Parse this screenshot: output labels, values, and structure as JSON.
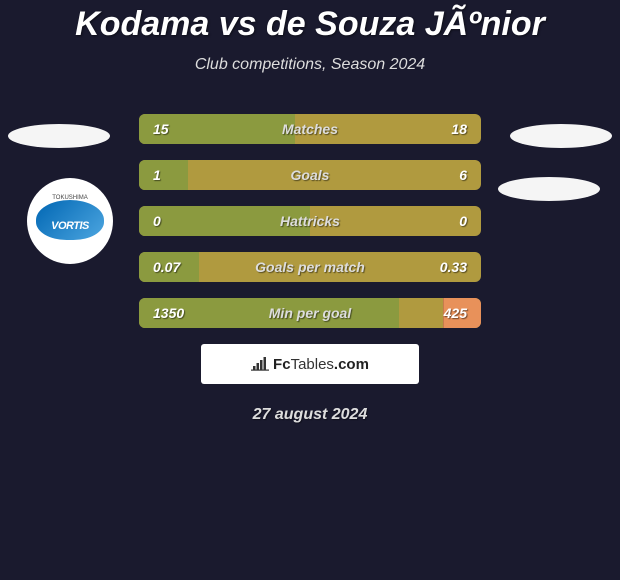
{
  "title": "Kodama vs de Souza JÃºnior",
  "subtitle": "Club competitions, Season 2024",
  "date": "27 august 2024",
  "attribution": {
    "brand_bold": "Fc",
    "brand_light": "Tables",
    "brand_suffix": ".com"
  },
  "team_logo": {
    "top_text": "TOKUSHIMA",
    "brand_text": "VORTIS"
  },
  "colors": {
    "background": "#1a1a2e",
    "bar_left_base": "#8b9a3f",
    "bar_full": "#b09a3f",
    "right_accent": "#d4a84a",
    "text": "#ffffff",
    "muted_text": "#dddddd"
  },
  "stats": [
    {
      "label": "Matches",
      "left_value": "15",
      "right_value": "18",
      "left_pct": 45.5,
      "right_accent_color": "#d4a84a",
      "right_accent_pct": 0
    },
    {
      "label": "Goals",
      "left_value": "1",
      "right_value": "6",
      "left_pct": 14.3,
      "right_accent_color": "#d4a84a",
      "right_accent_pct": 0
    },
    {
      "label": "Hattricks",
      "left_value": "0",
      "right_value": "0",
      "left_pct": 50,
      "right_accent_color": "#d4a84a",
      "right_accent_pct": 0
    },
    {
      "label": "Goals per match",
      "left_value": "0.07",
      "right_value": "0.33",
      "left_pct": 17.5,
      "right_accent_color": "#d4a84a",
      "right_accent_pct": 0
    },
    {
      "label": "Min per goal",
      "left_value": "1350",
      "right_value": "425",
      "left_pct": 76,
      "right_accent_color": "#e8915a",
      "right_accent_pct": 11
    }
  ]
}
